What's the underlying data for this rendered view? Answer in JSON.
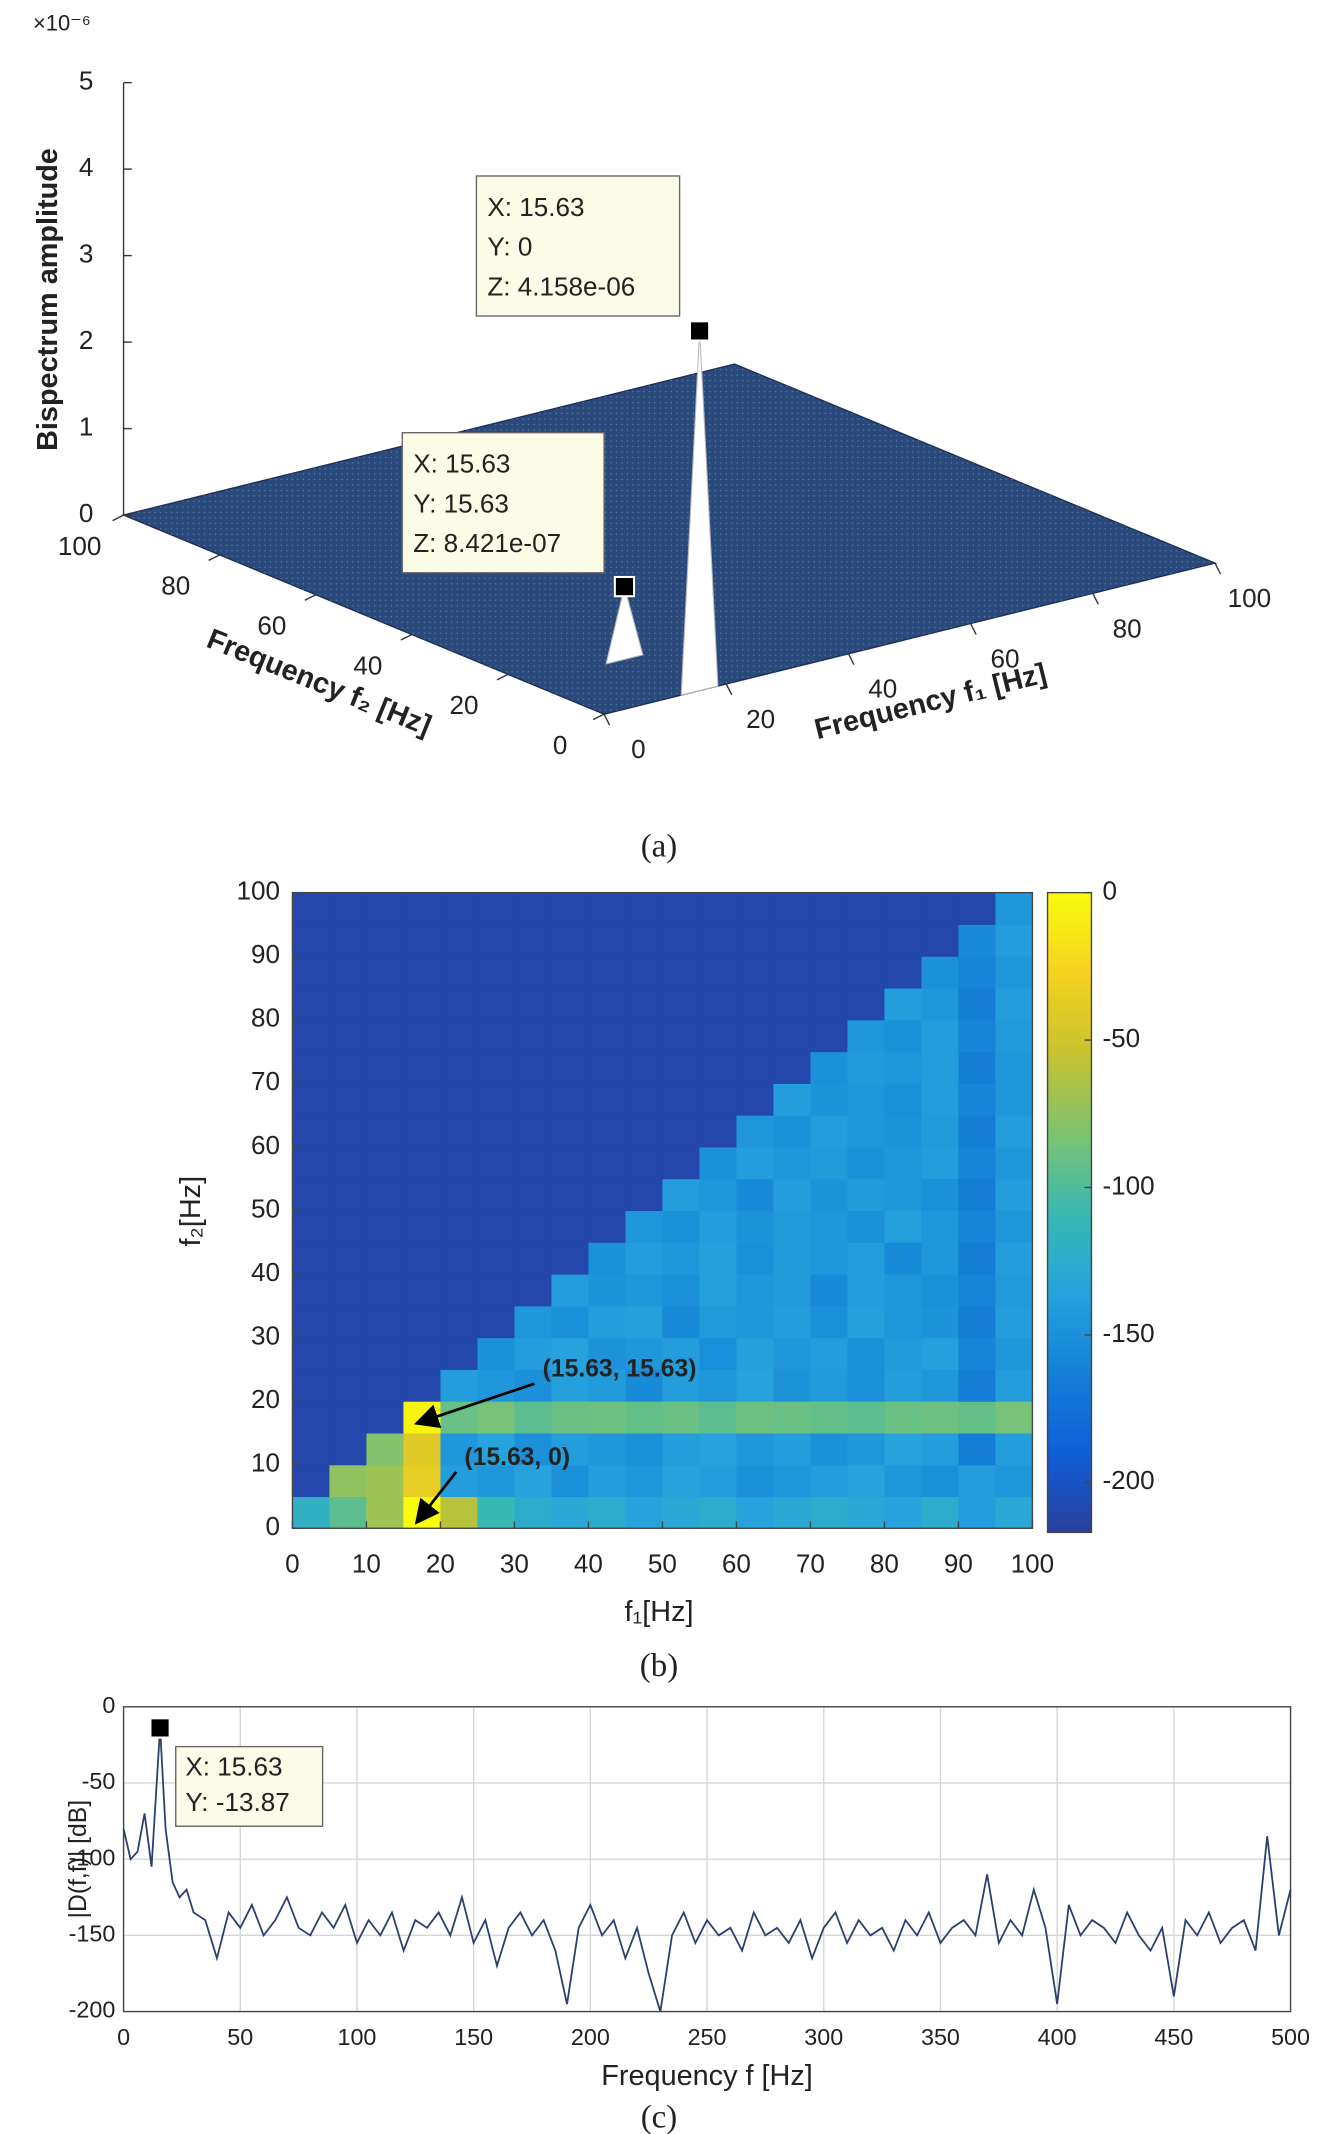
{
  "chart_data": [
    {
      "type": "surface3d",
      "zlabel": "Bispectrum amplitude",
      "z_multiplier": "×10⁻⁶",
      "xlabel": "Frequency f₁ [Hz]",
      "ylabel": "Frequency f₂ [Hz]",
      "xlim": [
        0,
        100
      ],
      "ylim": [
        0,
        100
      ],
      "zlim": [
        0,
        5e-06
      ],
      "xticks": [
        0,
        20,
        40,
        60,
        80,
        100
      ],
      "yticks": [
        0,
        20,
        40,
        60,
        80,
        100
      ],
      "zticks": [
        0,
        {
          "value": 1e-06,
          "label": "1"
        },
        {
          "value": 2e-06,
          "label": "2"
        },
        {
          "value": 3e-06,
          "label": "3"
        },
        {
          "value": 4e-06,
          "label": "4"
        },
        {
          "value": 5e-06,
          "label": "5"
        }
      ],
      "peaks": [
        {
          "x": 15.63,
          "y": 0,
          "z": 4.158e-06,
          "datatip": [
            "X: 15.63",
            "Y: 0",
            "Z: 4.158e-06"
          ]
        },
        {
          "x": 15.63,
          "y": 15.63,
          "z": 8.421e-07,
          "datatip": [
            "X: 15.63",
            "Y: 15.63",
            "Z: 8.421e-07"
          ]
        }
      ],
      "surface_color": "#2b4a7c",
      "panel_label": "(a)"
    },
    {
      "type": "heatmap",
      "xlabel": "f₁[Hz]",
      "ylabel": "f₂[Hz]",
      "xlim": [
        0,
        100
      ],
      "ylim": [
        0,
        100
      ],
      "xticks": [
        0,
        10,
        20,
        30,
        40,
        50,
        60,
        70,
        80,
        90,
        100
      ],
      "yticks": [
        0,
        10,
        20,
        30,
        40,
        50,
        60,
        70,
        80,
        90,
        100
      ],
      "xbins": [
        0,
        5,
        10,
        15,
        20,
        25,
        30,
        35,
        40,
        45,
        50,
        55,
        60,
        65,
        70,
        75,
        80,
        85,
        90,
        95,
        100
      ],
      "ybins": [
        0,
        5,
        10,
        15,
        20,
        25,
        30,
        35,
        40,
        45,
        50,
        55,
        60,
        65,
        70,
        75,
        80,
        85,
        90,
        95,
        100
      ],
      "z": [
        [
          -120,
          -95,
          -70,
          0,
          -60,
          -110,
          -125,
          -130,
          -125,
          -135,
          -130,
          -125,
          -135,
          -130,
          -125,
          -130,
          -135,
          -125,
          -140,
          -130
        ],
        [
          -210,
          -75,
          -70,
          -35,
          -140,
          -145,
          -135,
          -150,
          -140,
          -145,
          -135,
          -140,
          -150,
          -145,
          -140,
          -135,
          -145,
          -150,
          -140,
          -145
        ],
        [
          -210,
          -210,
          -80,
          -40,
          -145,
          -135,
          -150,
          -140,
          -145,
          -150,
          -140,
          -135,
          -145,
          -140,
          -150,
          -145,
          -135,
          -140,
          -165,
          -140
        ],
        [
          -210,
          -210,
          -210,
          -5,
          -90,
          -85,
          -95,
          -90,
          -88,
          -92,
          -90,
          -95,
          -88,
          -90,
          -92,
          -95,
          -90,
          -88,
          -92,
          -85
        ],
        [
          -210,
          -210,
          -210,
          -210,
          -140,
          -145,
          -150,
          -138,
          -142,
          -155,
          -140,
          -145,
          -136,
          -148,
          -142,
          -150,
          -140,
          -145,
          -165,
          -140
        ],
        [
          -210,
          -210,
          -210,
          -210,
          -210,
          -150,
          -140,
          -135,
          -148,
          -145,
          -140,
          -152,
          -138,
          -145,
          -140,
          -150,
          -142,
          -138,
          -160,
          -145
        ],
        [
          -210,
          -210,
          -210,
          -210,
          -210,
          -210,
          -145,
          -150,
          -140,
          -138,
          -155,
          -142,
          -145,
          -140,
          -150,
          -138,
          -145,
          -148,
          -165,
          -140
        ],
        [
          -210,
          -210,
          -210,
          -210,
          -210,
          -210,
          -210,
          -140,
          -148,
          -145,
          -150,
          -138,
          -145,
          -142,
          -155,
          -140,
          -145,
          -150,
          -160,
          -142
        ],
        [
          -210,
          -210,
          -210,
          -210,
          -210,
          -210,
          -210,
          -210,
          -150,
          -140,
          -145,
          -138,
          -150,
          -142,
          -145,
          -140,
          -155,
          -145,
          -165,
          -140
        ],
        [
          -210,
          -210,
          -210,
          -210,
          -210,
          -210,
          -210,
          -210,
          -210,
          -145,
          -150,
          -140,
          -148,
          -142,
          -145,
          -150,
          -138,
          -145,
          -160,
          -145
        ],
        [
          -210,
          -210,
          -210,
          -210,
          -210,
          -210,
          -210,
          -210,
          -210,
          -210,
          -140,
          -145,
          -155,
          -140,
          -148,
          -142,
          -145,
          -150,
          -165,
          -140
        ],
        [
          -210,
          -210,
          -210,
          -210,
          -210,
          -210,
          -210,
          -210,
          -210,
          -210,
          -210,
          -150,
          -140,
          -145,
          -142,
          -150,
          -145,
          -140,
          -160,
          -145
        ],
        [
          -210,
          -210,
          -210,
          -210,
          -210,
          -210,
          -210,
          -210,
          -210,
          -210,
          -210,
          -210,
          -145,
          -150,
          -140,
          -145,
          -148,
          -142,
          -165,
          -140
        ],
        [
          -210,
          -210,
          -210,
          -210,
          -210,
          -210,
          -210,
          -210,
          -210,
          -210,
          -210,
          -210,
          -210,
          -140,
          -148,
          -145,
          -150,
          -140,
          -160,
          -145
        ],
        [
          -210,
          -210,
          -210,
          -210,
          -210,
          -210,
          -210,
          -210,
          -210,
          -210,
          -210,
          -210,
          -210,
          -210,
          -150,
          -142,
          -145,
          -140,
          -165,
          -145
        ],
        [
          -210,
          -210,
          -210,
          -210,
          -210,
          -210,
          -210,
          -210,
          -210,
          -210,
          -210,
          -210,
          -210,
          -210,
          -210,
          -145,
          -150,
          -140,
          -160,
          -142
        ],
        [
          -210,
          -210,
          -210,
          -210,
          -210,
          -210,
          -210,
          -210,
          -210,
          -210,
          -210,
          -210,
          -210,
          -210,
          -210,
          -210,
          -140,
          -145,
          -165,
          -140
        ],
        [
          -210,
          -210,
          -210,
          -210,
          -210,
          -210,
          -210,
          -210,
          -210,
          -210,
          -210,
          -210,
          -210,
          -210,
          -210,
          -210,
          -210,
          -150,
          -160,
          -145
        ],
        [
          -210,
          -210,
          -210,
          -210,
          -210,
          -210,
          -210,
          -210,
          -210,
          -210,
          -210,
          -210,
          -210,
          -210,
          -210,
          -210,
          -210,
          -210,
          -155,
          -140
        ],
        [
          -210,
          -210,
          -210,
          -210,
          -210,
          -210,
          -210,
          -210,
          -210,
          -210,
          -210,
          -210,
          -210,
          -210,
          -210,
          -210,
          -210,
          -210,
          -210,
          -145
        ]
      ],
      "clim": [
        -217,
        0
      ],
      "cticks": [
        0,
        -50,
        -100,
        -150,
        -200
      ],
      "colormap": [
        "#2a3f9c",
        "#0f5fd8",
        "#1480d6",
        "#26a3dd",
        "#3ab8b0",
        "#7ec36f",
        "#c8c22f",
        "#f5d21f",
        "#f9fb0e"
      ],
      "annotations": [
        {
          "text": "(15.63, 15.63)",
          "x": 15.63,
          "y": 15.63
        },
        {
          "text": "(15.63, 0)",
          "x": 15.63,
          "y": 0
        }
      ],
      "panel_label": "(b)"
    },
    {
      "type": "line",
      "xlabel": "Frequency f [Hz]",
      "ylabel": "|D(f,f)| [dB]",
      "xlim": [
        0,
        500
      ],
      "ylim": [
        -200,
        0
      ],
      "xticks": [
        0,
        50,
        100,
        150,
        200,
        250,
        300,
        350,
        400,
        450,
        500
      ],
      "yticks": [
        0,
        -50,
        -100,
        -150,
        -200
      ],
      "grid": true,
      "x": [
        0,
        3,
        6,
        9,
        12,
        15.63,
        18,
        21,
        24,
        27,
        30,
        35,
        40,
        45,
        50,
        55,
        60,
        65,
        70,
        75,
        80,
        85,
        90,
        95,
        100,
        105,
        110,
        115,
        120,
        125,
        130,
        135,
        140,
        145,
        150,
        155,
        160,
        165,
        170,
        175,
        180,
        185,
        190,
        195,
        200,
        205,
        210,
        215,
        220,
        225,
        230,
        235,
        240,
        245,
        250,
        255,
        260,
        265,
        270,
        275,
        280,
        285,
        290,
        295,
        300,
        305,
        310,
        315,
        320,
        325,
        330,
        335,
        340,
        345,
        350,
        355,
        360,
        365,
        370,
        375,
        380,
        385,
        390,
        395,
        400,
        405,
        410,
        415,
        420,
        425,
        430,
        435,
        440,
        445,
        450,
        455,
        460,
        465,
        470,
        475,
        480,
        485,
        490,
        495,
        500
      ],
      "series": [
        {
          "color": "#2b3f6e",
          "values": [
            -80,
            -100,
            -95,
            -70,
            -105,
            -13.87,
            -80,
            -115,
            -125,
            -120,
            -135,
            -140,
            -165,
            -135,
            -145,
            -130,
            -150,
            -140,
            -125,
            -145,
            -150,
            -135,
            -145,
            -130,
            -155,
            -140,
            -150,
            -135,
            -160,
            -140,
            -145,
            -135,
            -150,
            -125,
            -155,
            -140,
            -170,
            -145,
            -135,
            -150,
            -140,
            -160,
            -195,
            -145,
            -130,
            -150,
            -140,
            -165,
            -145,
            -175,
            -200,
            -150,
            -135,
            -155,
            -140,
            -150,
            -145,
            -160,
            -135,
            -150,
            -145,
            -155,
            -140,
            -165,
            -145,
            -135,
            -155,
            -140,
            -150,
            -145,
            -160,
            -140,
            -150,
            -135,
            -155,
            -145,
            -140,
            -150,
            -110,
            -155,
            -140,
            -150,
            -120,
            -145,
            -195,
            -130,
            -150,
            -140,
            -145,
            -155,
            -135,
            -150,
            -160,
            -145,
            -190,
            -140,
            -150,
            -135,
            -155,
            -145,
            -140,
            -160,
            -85,
            -150,
            -120
          ]
        }
      ],
      "peak": {
        "x": 15.63,
        "y": -13.87,
        "datatip": [
          "X: 15.63",
          "Y: -13.87"
        ]
      },
      "panel_label": "(c)"
    }
  ]
}
